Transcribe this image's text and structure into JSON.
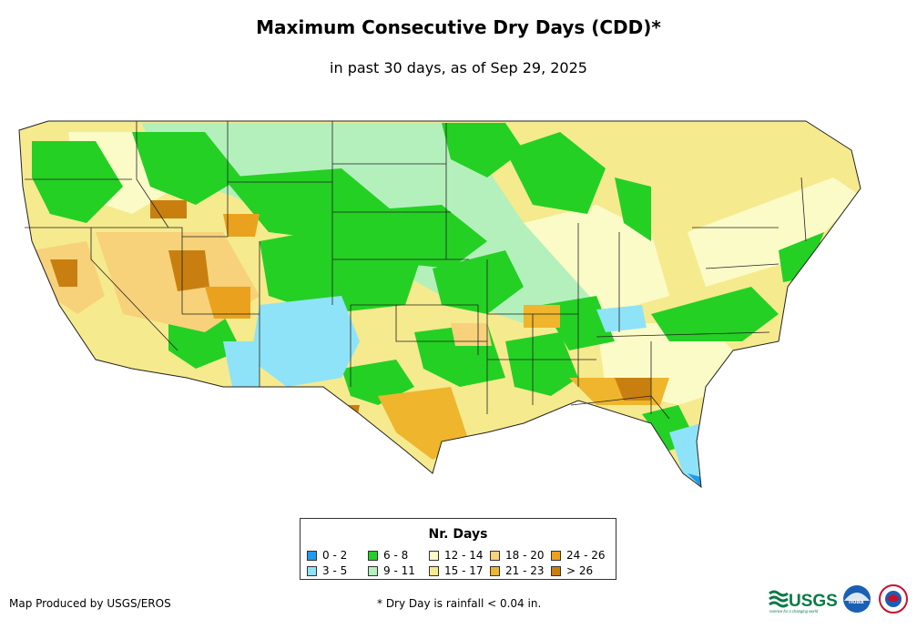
{
  "title": "Maximum Consecutive Dry Days (CDD)*",
  "subtitle": "in past 30 days, as of Sep 29, 2025",
  "legend": {
    "title": "Nr. Days",
    "items": [
      {
        "label": "0 - 2",
        "color": "#1e9bf0"
      },
      {
        "label": "3 - 5",
        "color": "#8ee3f8"
      },
      {
        "label": "6 - 8",
        "color": "#24d024"
      },
      {
        "label": "9 - 11",
        "color": "#b4f0bc"
      },
      {
        "label": "12 - 14",
        "color": "#fbfbc8"
      },
      {
        "label": "15 - 17",
        "color": "#f6ea8e"
      },
      {
        "label": "18 - 20",
        "color": "#f7d27a"
      },
      {
        "label": "21 - 23",
        "color": "#eeb52d"
      },
      {
        "label": "24 - 26",
        "color": "#eaa21e"
      },
      {
        "label": "> 26",
        "color": "#c97f10"
      }
    ]
  },
  "credit": "Map Produced by USGS/EROS",
  "footnote": "* Dry Day is rainfall < 0.04 in.",
  "logos": {
    "usgs_text": "USGS",
    "usgs_tagline": "science for a changing world",
    "noaa_text": "noaa"
  }
}
